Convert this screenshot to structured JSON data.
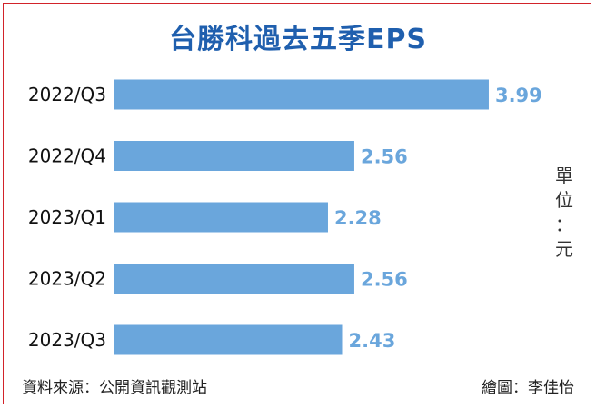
{
  "chart_data": {
    "type": "bar",
    "orientation": "horizontal",
    "title": "台勝科過去五季EPS",
    "categories": [
      "2022/Q3",
      "2022/Q4",
      "2023/Q1",
      "2023/Q2",
      "2023/Q3"
    ],
    "values": [
      3.99,
      2.56,
      2.28,
      2.56,
      2.43
    ],
    "value_labels": [
      "3.99",
      "2.56",
      "2.28",
      "2.56",
      "2.43"
    ],
    "unit_chars": [
      "單",
      "位",
      "：",
      "元"
    ],
    "grid": false,
    "legend": "none",
    "colors": {
      "bar": "#6aa6dc",
      "value_label": "#6aa6dc",
      "title": "#1f5fae",
      "frame": "#d2232a"
    }
  },
  "footer": {
    "source": "資料來源：公開資訊觀測站",
    "credit": "繪圖：李佳怡"
  }
}
